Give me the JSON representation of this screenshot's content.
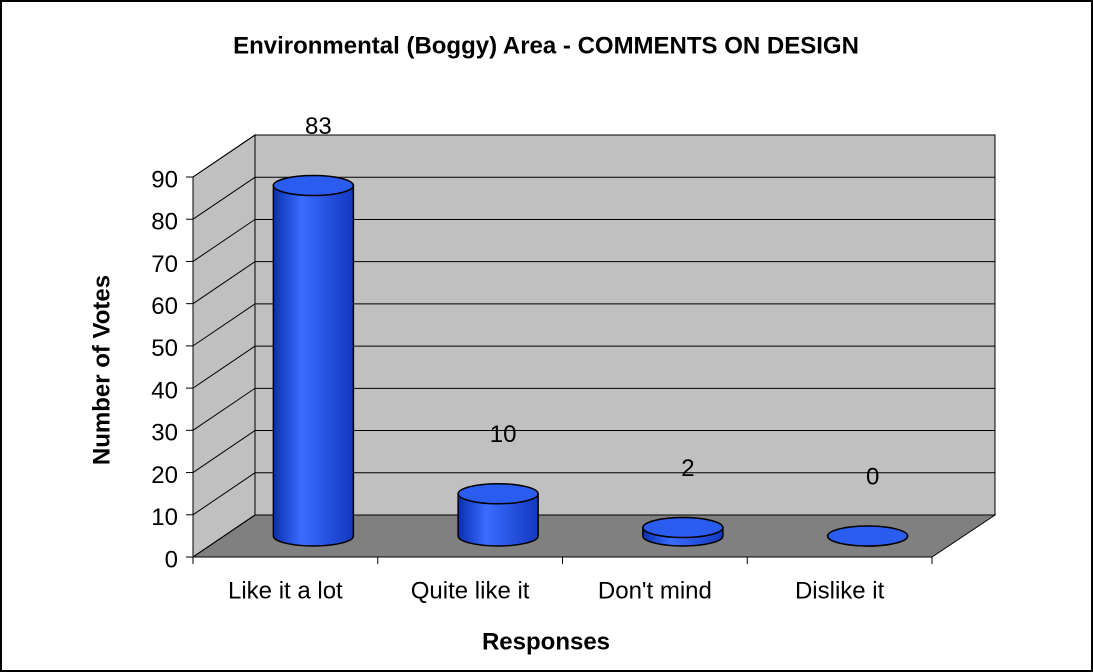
{
  "chart_data": {
    "type": "bar3d",
    "title": "Environmental (Boggy) Area - COMMENTS ON DESIGN",
    "x_label": "Responses",
    "y_label": "Number of Votes",
    "categories": [
      "Like it a lot",
      "Quite like it",
      "Don't mind",
      "Dislike it"
    ],
    "values": [
      83,
      10,
      2,
      0
    ],
    "color": "#2a5cf0",
    "ylim": [
      0,
      90
    ],
    "yticks": [
      0,
      10,
      20,
      30,
      40,
      50,
      60,
      70,
      80,
      90
    ],
    "grid": true
  }
}
